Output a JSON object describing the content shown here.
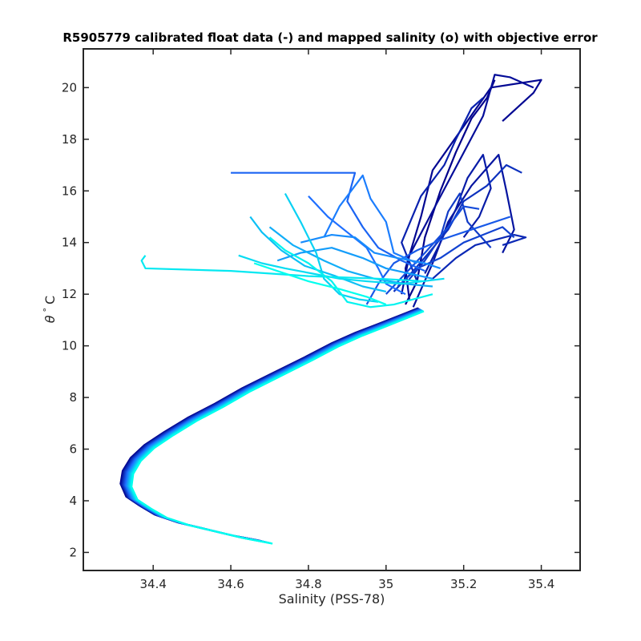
{
  "chart_data": {
    "type": "line",
    "title": "R5905779 calibrated float data (-) and mapped salinity (o) with objective error",
    "xlabel": "Salinity (PSS-78)",
    "ylabel_parts": {
      "theta": "θ",
      "degree": "°",
      "unit": "C"
    },
    "xlim": [
      34.22,
      35.5
    ],
    "ylim": [
      1.3,
      21.5
    ],
    "xticks": [
      34.4,
      34.6,
      34.8,
      35.0,
      35.2,
      35.4
    ],
    "xtick_labels": [
      "34.4",
      "34.6",
      "34.8",
      "35",
      "35.2",
      "35.4"
    ],
    "yticks": [
      2,
      4,
      6,
      8,
      10,
      12,
      14,
      16,
      18,
      20
    ],
    "ytick_labels": [
      "2",
      "4",
      "6",
      "8",
      "10",
      "12",
      "14",
      "16",
      "18",
      "20"
    ],
    "grid": false,
    "colormap": {
      "start": "#00008b",
      "mid": "#1e6fff",
      "end": "#00ffee"
    },
    "deep_curve": {
      "x": [
        34.69,
        34.62,
        34.55,
        34.48,
        34.42,
        34.38,
        34.345,
        34.33,
        34.335,
        34.355,
        34.39,
        34.44,
        34.5,
        34.57,
        34.64,
        34.72,
        34.8,
        34.87,
        34.93,
        34.99,
        35.04,
        35.09
      ],
      "y": [
        2.4,
        2.6,
        2.85,
        3.1,
        3.4,
        3.75,
        4.1,
        4.6,
        5.1,
        5.6,
        6.1,
        6.6,
        7.15,
        7.7,
        8.3,
        8.9,
        9.5,
        10.05,
        10.45,
        10.8,
        11.1,
        11.4
      ]
    },
    "upper_profiles": [
      {
        "color_t": 0.0,
        "x": [
          35.05,
          35.08,
          35.1,
          35.14,
          35.18,
          35.22,
          35.26,
          35.28
        ],
        "y": [
          11.6,
          12.5,
          14.2,
          16.0,
          17.5,
          18.8,
          19.6,
          20.3
        ]
      },
      {
        "color_t": 0.03,
        "x": [
          35.06,
          35.05,
          35.09,
          35.12,
          35.2,
          35.27,
          35.4,
          35.38,
          35.3
        ],
        "y": [
          11.8,
          13.0,
          15.0,
          16.8,
          18.5,
          20.0,
          20.3,
          19.8,
          18.7
        ]
      },
      {
        "color_t": 0.06,
        "x": [
          35.04,
          35.06,
          35.13,
          35.19,
          35.25,
          35.28,
          35.32,
          35.38
        ],
        "y": [
          12.0,
          13.5,
          15.5,
          17.2,
          18.9,
          20.5,
          20.4,
          20.0
        ]
      },
      {
        "color_t": 0.09,
        "x": [
          35.07,
          35.12,
          35.16,
          35.22,
          35.29,
          35.31,
          35.33,
          35.3
        ],
        "y": [
          11.5,
          13.2,
          14.8,
          16.2,
          17.4,
          16.0,
          14.5,
          13.6
        ]
      },
      {
        "color_t": 0.12,
        "x": [
          35.1,
          35.14,
          35.18,
          35.21,
          35.25,
          35.27,
          35.24,
          35.2
        ],
        "y": [
          12.8,
          14.0,
          15.3,
          16.5,
          17.4,
          16.1,
          15.0,
          14.2
        ]
      },
      {
        "color_t": 0.15,
        "x": [
          35.08,
          35.04,
          35.09,
          35.15,
          35.18,
          35.22,
          35.25
        ],
        "y": [
          12.5,
          14.0,
          15.8,
          17.0,
          18.0,
          19.2,
          19.6
        ]
      },
      {
        "color_t": 0.18,
        "x": [
          35.12,
          35.18,
          35.23,
          35.28,
          35.33,
          35.36,
          35.3
        ],
        "y": [
          12.6,
          13.4,
          13.9,
          14.1,
          14.3,
          14.2,
          13.9
        ]
      },
      {
        "color_t": 0.22,
        "x": [
          35.02,
          35.07,
          35.11,
          35.16,
          35.2,
          35.26,
          35.31,
          35.35
        ],
        "y": [
          12.1,
          12.9,
          13.6,
          14.5,
          15.6,
          16.2,
          17.0,
          16.7
        ]
      },
      {
        "color_t": 0.26,
        "x": [
          35.05,
          35.1,
          35.14,
          35.16,
          35.19,
          35.21,
          35.27
        ],
        "y": [
          12.4,
          13.3,
          14.2,
          15.2,
          15.9,
          14.8,
          13.8
        ]
      },
      {
        "color_t": 0.3,
        "x": [
          35.03,
          35.08,
          35.14,
          35.2,
          35.25,
          35.3,
          35.33
        ],
        "y": [
          12.3,
          13.0,
          13.4,
          14.0,
          14.3,
          14.6,
          14.2
        ]
      },
      {
        "color_t": 0.34,
        "x": [
          35.0,
          35.05,
          35.1,
          35.16,
          35.2,
          35.24
        ],
        "y": [
          12.0,
          12.8,
          13.6,
          14.6,
          15.4,
          15.3
        ]
      },
      {
        "color_t": 0.4,
        "x": [
          34.95,
          34.98,
          35.02,
          35.08,
          35.14,
          35.22,
          35.32
        ],
        "y": [
          11.6,
          12.4,
          13.2,
          13.7,
          14.1,
          14.5,
          15.0
        ]
      },
      {
        "color_t": 0.45,
        "x": [
          34.6,
          34.92,
          34.9,
          34.94,
          34.98,
          35.04,
          35.1
        ],
        "y": [
          16.7,
          16.7,
          15.6,
          14.6,
          13.8,
          13.3,
          12.9
        ]
      },
      {
        "color_t": 0.5,
        "x": [
          34.8,
          34.85,
          34.9,
          34.95,
          34.98,
          35.0,
          35.05
        ],
        "y": [
          15.8,
          15.0,
          14.4,
          13.8,
          13.0,
          12.4,
          12.0
        ]
      },
      {
        "color_t": 0.55,
        "x": [
          34.84,
          34.88,
          34.94,
          34.96,
          35.0,
          35.02,
          35.08
        ],
        "y": [
          14.2,
          15.4,
          16.6,
          15.7,
          14.8,
          13.6,
          13.2
        ]
      },
      {
        "color_t": 0.6,
        "x": [
          34.78,
          34.86,
          34.92,
          34.97,
          35.03,
          35.1,
          35.14
        ],
        "y": [
          14.0,
          14.3,
          14.2,
          13.6,
          13.4,
          13.2,
          13.0
        ]
      },
      {
        "color_t": 0.66,
        "x": [
          34.72,
          34.78,
          34.86,
          34.94,
          35.0,
          35.06,
          35.12
        ],
        "y": [
          13.3,
          13.6,
          13.8,
          13.4,
          13.0,
          12.8,
          12.6
        ]
      },
      {
        "color_t": 0.72,
        "x": [
          34.7,
          34.76,
          34.84,
          34.9,
          34.97,
          35.05,
          35.12
        ],
        "y": [
          14.6,
          13.9,
          13.3,
          12.9,
          12.6,
          12.4,
          12.3
        ]
      },
      {
        "color_t": 0.78,
        "x": [
          34.65,
          34.68,
          34.73,
          34.79,
          34.87,
          34.94,
          35.0
        ],
        "y": [
          15.0,
          14.4,
          13.7,
          13.1,
          12.7,
          12.3,
          12.1
        ]
      },
      {
        "color_t": 0.84,
        "x": [
          34.74,
          34.78,
          34.82,
          34.84,
          34.88,
          34.93,
          34.98
        ],
        "y": [
          15.9,
          14.8,
          13.6,
          12.6,
          12.0,
          11.8,
          11.7
        ]
      },
      {
        "color_t": 0.88,
        "x": [
          34.62,
          34.68,
          34.74,
          34.81,
          34.88,
          34.95,
          35.04,
          35.15
        ],
        "y": [
          13.5,
          13.2,
          13.0,
          12.8,
          12.6,
          12.5,
          12.4,
          12.6
        ]
      },
      {
        "color_t": 0.92,
        "x": [
          34.38,
          34.37,
          34.38,
          34.6,
          34.8,
          34.98,
          35.1
        ],
        "y": [
          13.5,
          13.3,
          13.0,
          12.9,
          12.7,
          12.6,
          12.5
        ]
      },
      {
        "color_t": 0.96,
        "x": [
          34.7,
          34.74,
          34.8,
          34.86,
          34.9,
          34.96,
          35.02,
          35.12
        ],
        "y": [
          14.2,
          13.7,
          13.2,
          12.5,
          11.7,
          11.5,
          11.6,
          12.0
        ]
      },
      {
        "color_t": 1.0,
        "x": [
          34.66,
          34.72,
          34.8,
          34.88,
          34.95,
          35.0
        ],
        "y": [
          13.2,
          12.9,
          12.5,
          12.2,
          11.9,
          11.6
        ]
      }
    ]
  }
}
